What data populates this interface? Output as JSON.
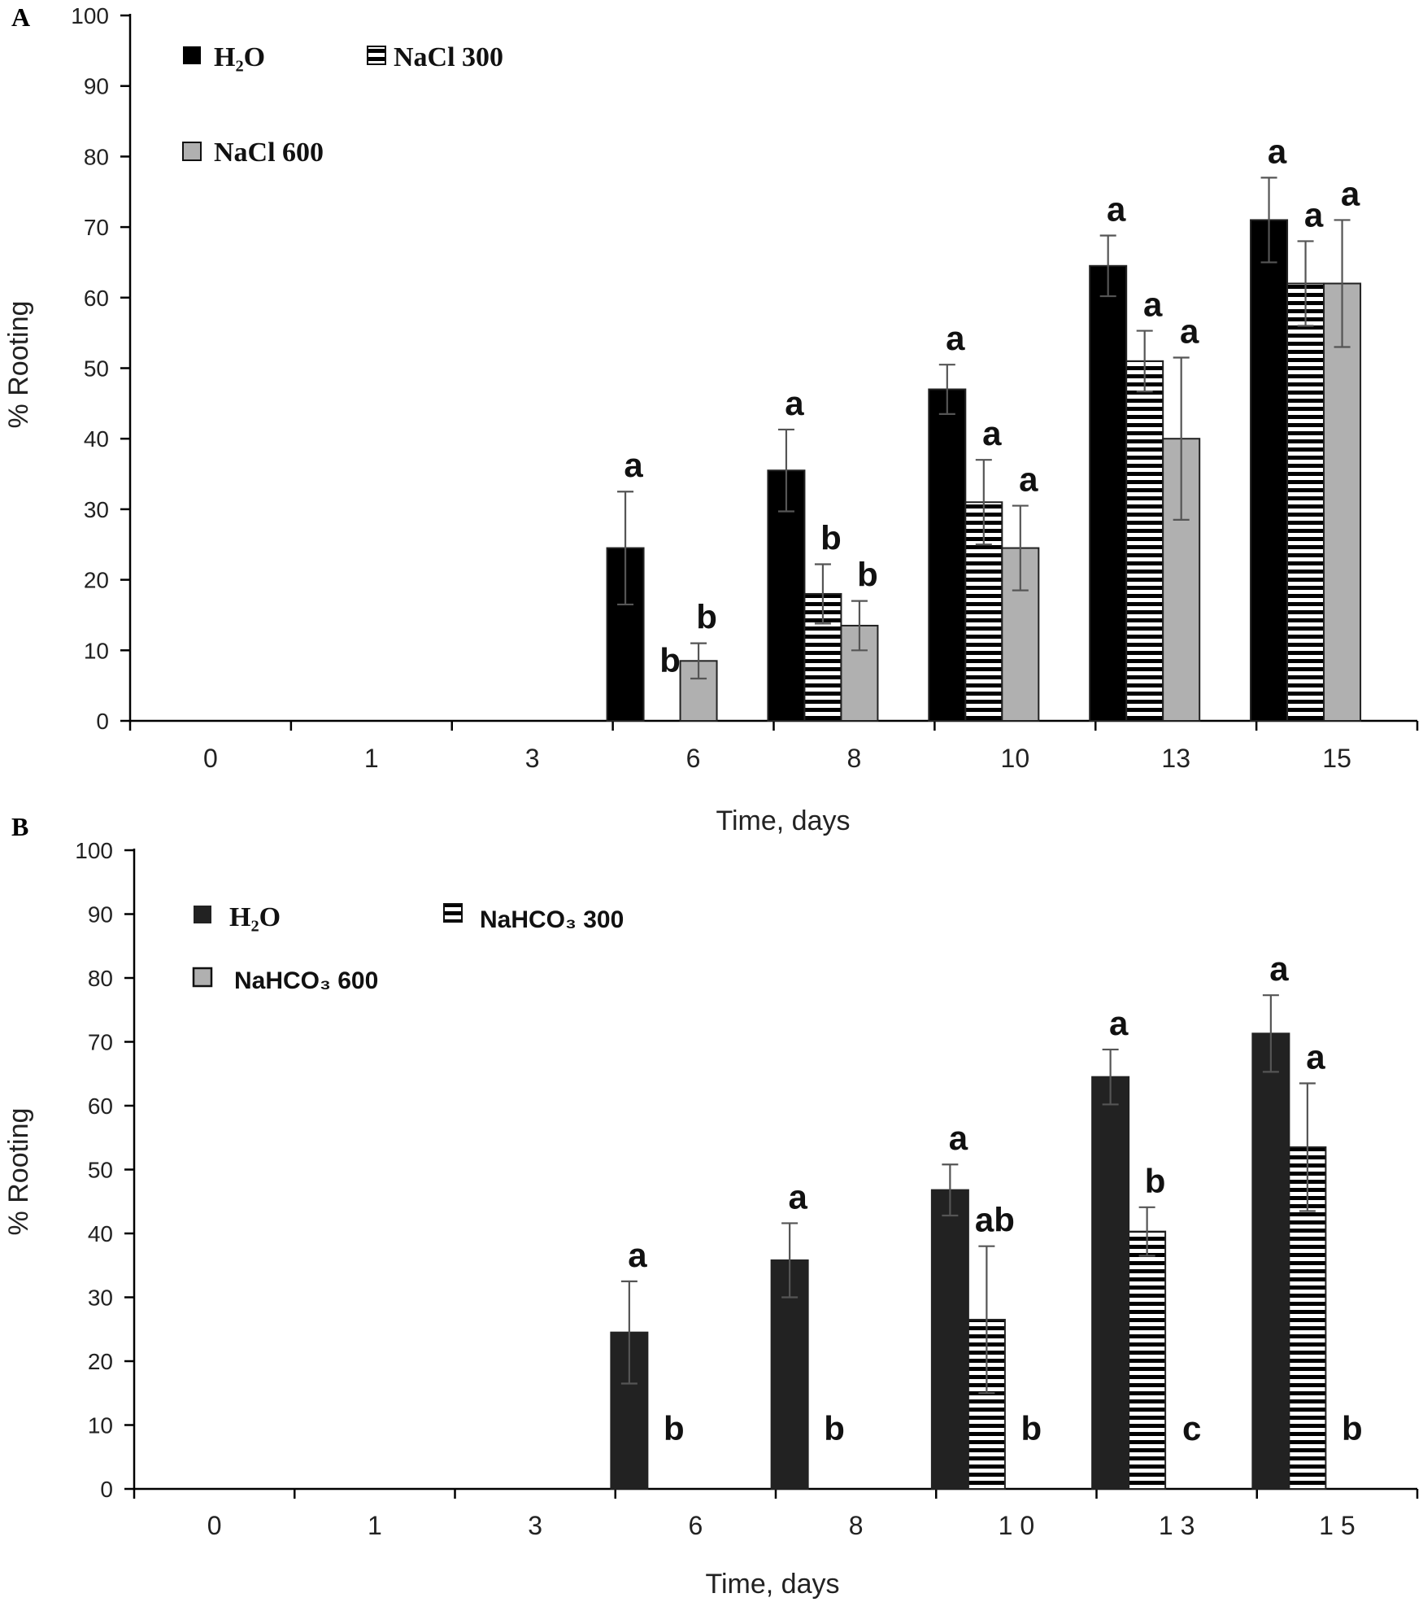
{
  "colors": {
    "h2o_a": "#000000",
    "h2o_b": "#222222",
    "gray": "#b0b0b0",
    "bar_outline": "#222222",
    "stripe": "#000000"
  },
  "chart_data": [
    {
      "type": "bar",
      "panel_label": "A",
      "title": "",
      "xlabel": "Time, days",
      "ylabel": "% Rooting",
      "ylim": [
        0,
        100
      ],
      "yticks": [
        "0",
        "10",
        "20",
        "30",
        "40",
        "50",
        "60",
        "70",
        "80",
        "90",
        "100"
      ],
      "categories": [
        "0",
        "1",
        "3",
        "6",
        "8",
        "10",
        "13",
        "15"
      ],
      "series": [
        {
          "name": "H₂O",
          "style": "solid-dark",
          "values": [
            0,
            0,
            0,
            24.5,
            35.5,
            47,
            64.5,
            71
          ],
          "errors": [
            0,
            0,
            0,
            8,
            5.8,
            3.5,
            4.3,
            6
          ],
          "sig": [
            "",
            "",
            "",
            "a",
            "a",
            "a",
            "a",
            "a"
          ]
        },
        {
          "name": "NaCl 300",
          "style": "horizontal-stripes",
          "values": [
            0,
            0,
            0,
            0,
            18,
            31,
            51,
            62
          ],
          "errors": [
            0,
            0,
            0,
            0,
            4.2,
            6,
            4.3,
            6
          ],
          "sig": [
            "",
            "",
            "",
            "b",
            "b",
            "a",
            "a",
            "a"
          ]
        },
        {
          "name": "NaCl 600",
          "style": "solid-gray",
          "values": [
            0,
            0,
            0,
            8.5,
            13.5,
            24.5,
            40,
            62
          ],
          "errors": [
            0,
            0,
            0,
            2.5,
            3.5,
            6,
            11.5,
            9
          ],
          "sig": [
            "",
            "",
            "",
            "b",
            "b",
            "a",
            "a",
            "a"
          ]
        }
      ],
      "legend": [
        "H₂O",
        "NaCl 300",
        "NaCl 600"
      ],
      "legend_placement": "top-left"
    },
    {
      "type": "bar",
      "panel_label": "B",
      "title": "",
      "xlabel": "Time, days",
      "ylabel": "% Rooting",
      "ylim": [
        0,
        100
      ],
      "yticks": [
        "0",
        "10",
        "20",
        "30",
        "40",
        "50",
        "60",
        "70",
        "80",
        "90",
        "100"
      ],
      "categories": [
        "0",
        "1",
        "3",
        "6",
        "8",
        "1 0",
        "1 3",
        "1 5"
      ],
      "series": [
        {
          "name": "H₂O",
          "style": "solid-dark",
          "values": [
            0,
            0,
            0,
            24.5,
            35.8,
            46.8,
            64.5,
            71.3
          ],
          "errors": [
            0,
            0,
            0,
            8,
            5.8,
            4,
            4.3,
            6
          ],
          "sig": [
            "",
            "",
            "",
            "a",
            "a",
            "a",
            "a",
            "a"
          ]
        },
        {
          "name": "NaHCO₃ 300",
          "style": "horizontal-stripes",
          "values": [
            0,
            0,
            0,
            0,
            0,
            26.5,
            40.3,
            53.5
          ],
          "errors": [
            0,
            0,
            0,
            0,
            0,
            11.5,
            3.8,
            10
          ],
          "sig": [
            "",
            "",
            "",
            "b",
            "b",
            "ab",
            "b",
            "a"
          ]
        },
        {
          "name": "NaHCO₃ 600",
          "style": "solid-gray",
          "values": [
            0,
            0,
            0,
            0,
            0,
            0,
            0,
            0
          ],
          "errors": [
            0,
            0,
            0,
            0,
            0,
            0,
            0,
            0
          ],
          "sig": [
            "",
            "",
            "",
            "",
            "",
            "b",
            "c",
            "b"
          ]
        }
      ],
      "legend": [
        "H₂O",
        "NaHCO₃ 300",
        "NaHCO₃ 600"
      ],
      "legend_placement": "top-left"
    }
  ]
}
